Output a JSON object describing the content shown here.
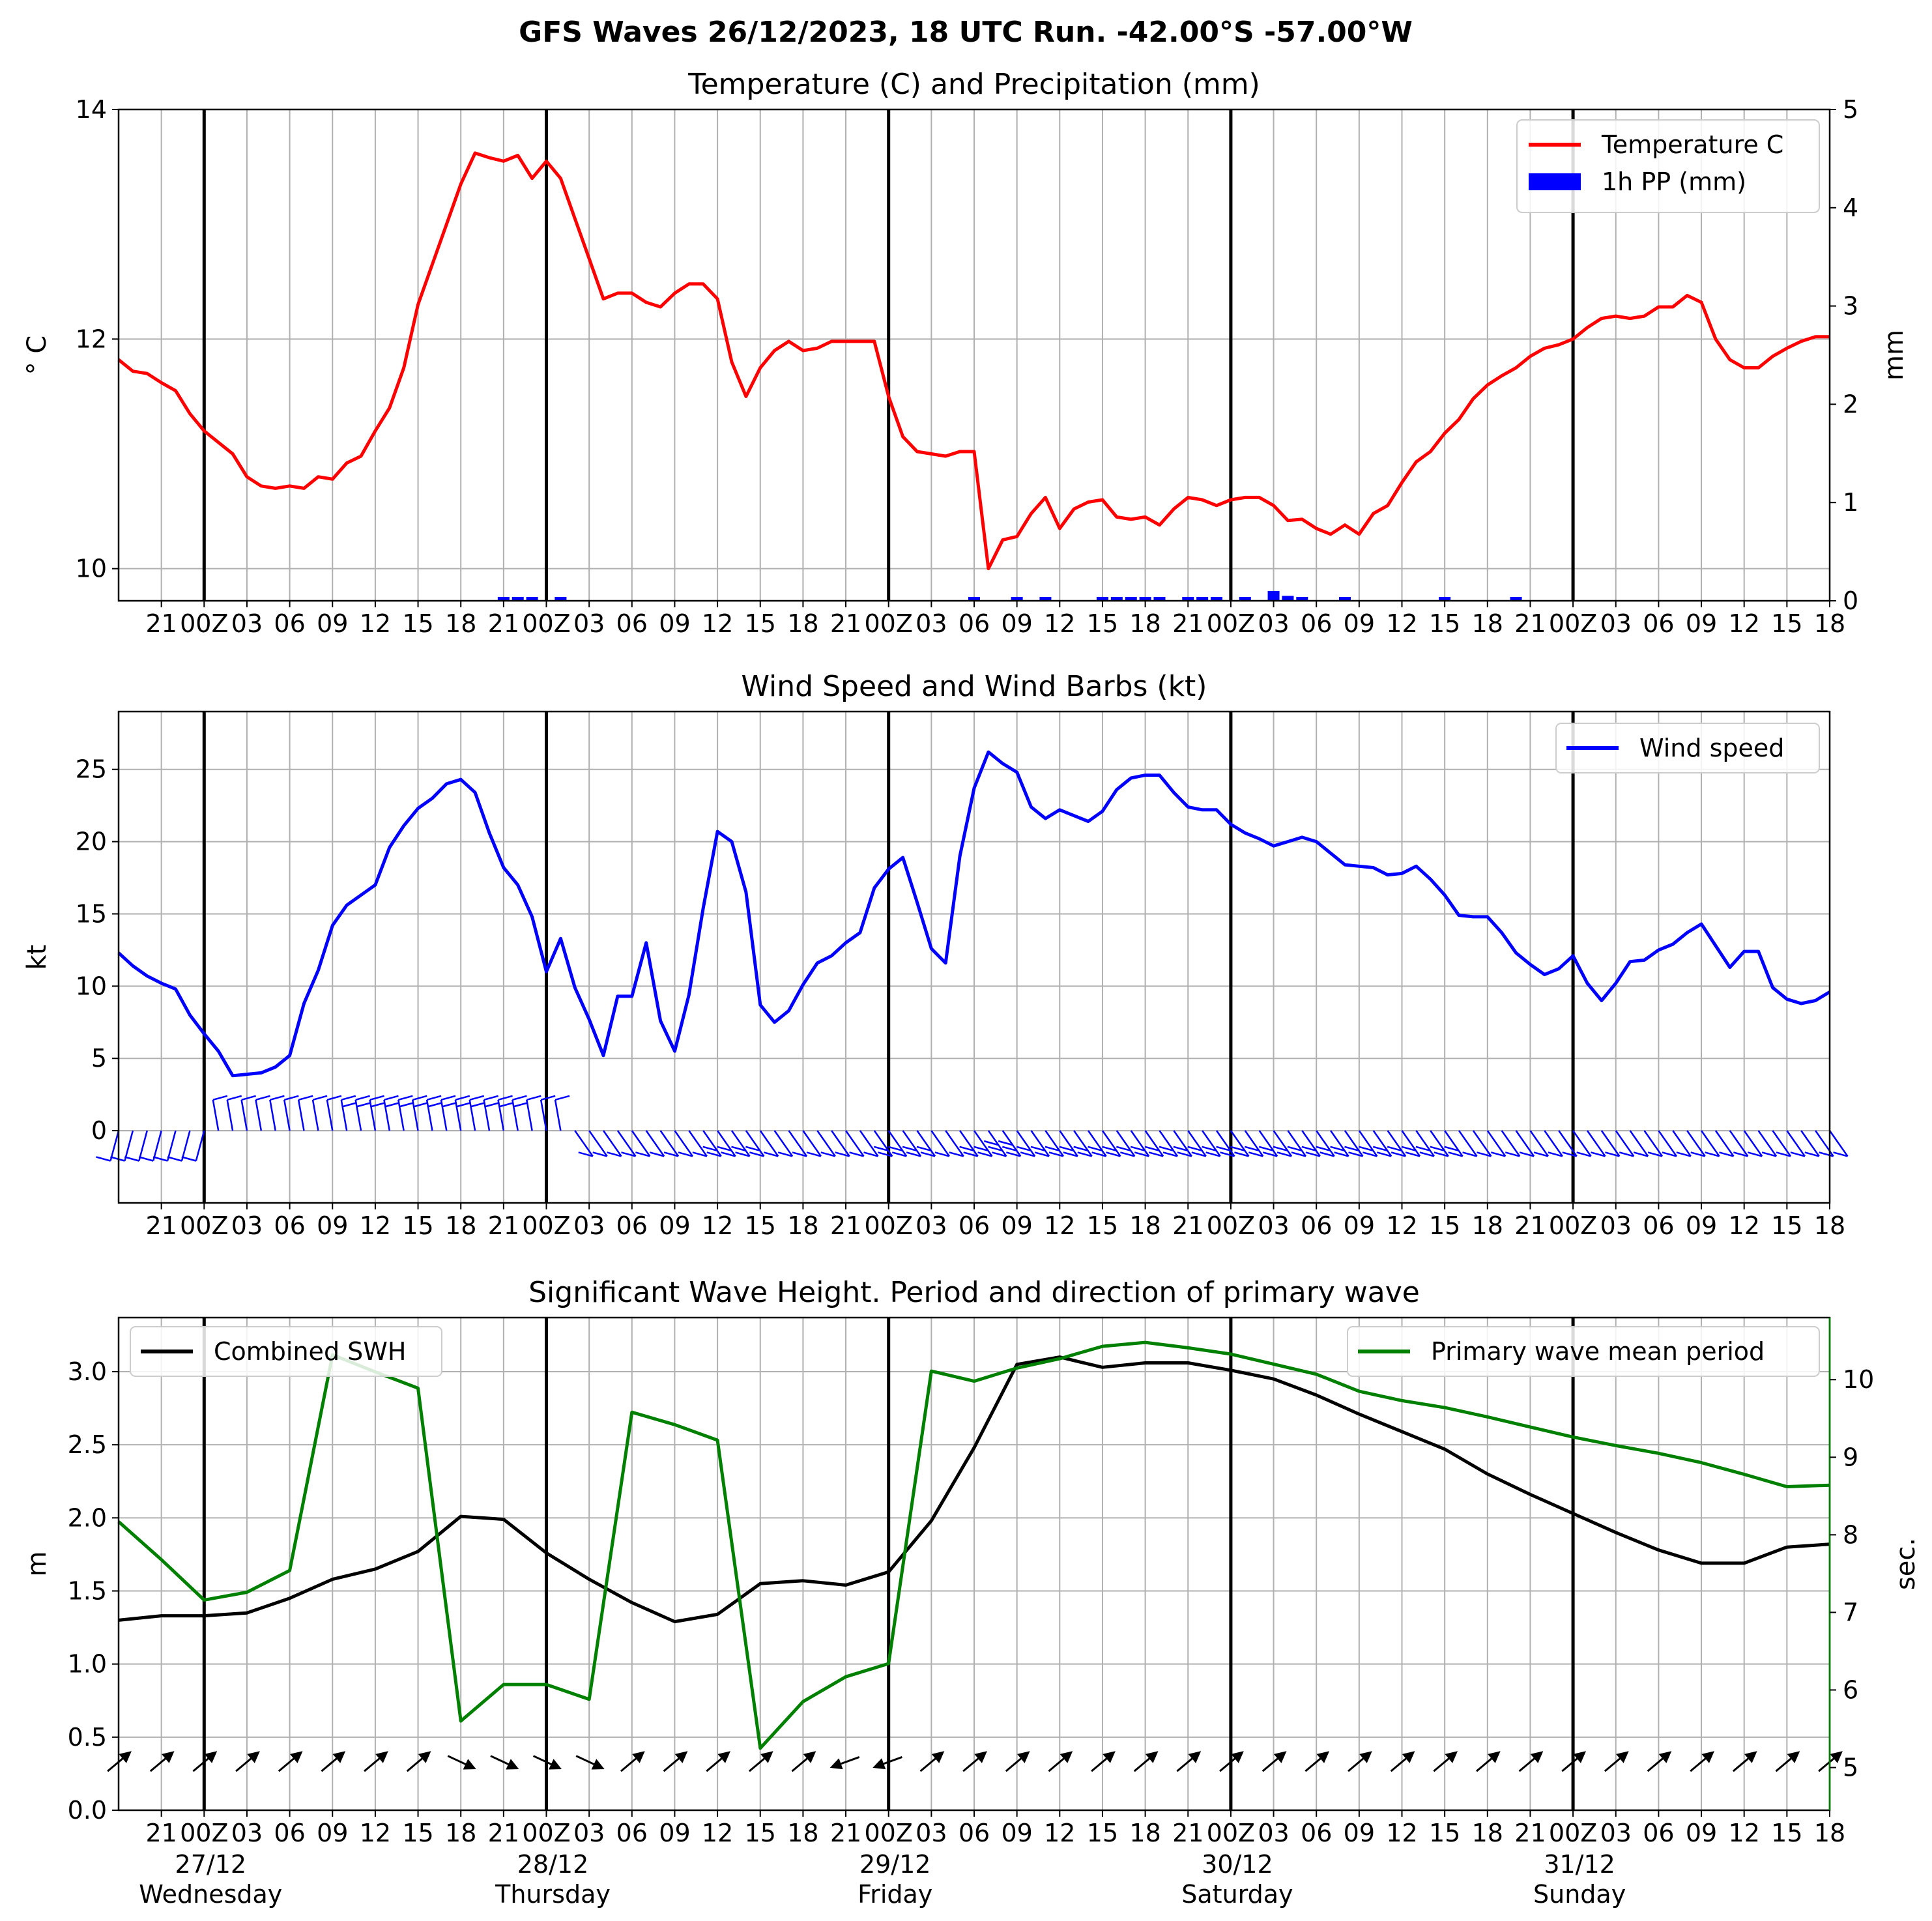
{
  "suptitle": "GFS Waves 26/12/2023, 18 UTC Run. -42.00°S -57.00°W",
  "x_tick_labels": [
    "21",
    "00Z",
    "03",
    "06",
    "09",
    "12",
    "15",
    "18",
    "21",
    "00Z",
    "03",
    "06",
    "09",
    "12",
    "15",
    "18",
    "21",
    "00Z",
    "03",
    "06",
    "09",
    "12",
    "15",
    "18",
    "21",
    "00Z",
    "03",
    "06",
    "09",
    "12",
    "15",
    "18",
    "21",
    "00Z",
    "03",
    "06",
    "09",
    "12",
    "15",
    "18"
  ],
  "day_labels": [
    {
      "date": "27/12",
      "day": "Wednesday"
    },
    {
      "date": "28/12",
      "day": "Thursday"
    },
    {
      "date": "29/12",
      "day": "Friday"
    },
    {
      "date": "30/12",
      "day": "Saturday"
    },
    {
      "date": "31/12",
      "day": "Sunday"
    }
  ],
  "colors": {
    "temperature": "#ff0000",
    "precip": "#0000ff",
    "wind": "#0000ff",
    "swh": "#000000",
    "period": "#008000",
    "grid": "#b0b0b0"
  },
  "chart_data": [
    {
      "type": "line",
      "title": "Temperature (C) and Precipitation (mm)",
      "ylabel": "° C",
      "y2label": "mm",
      "ylim": [
        9.72,
        14
      ],
      "yticks": [
        10,
        12,
        14
      ],
      "y2lim": [
        0,
        5
      ],
      "y2ticks": [
        0,
        1,
        2,
        3,
        4,
        5
      ],
      "xlim": [
        18,
        138
      ],
      "x_unit": "hours since 26/12 00Z",
      "grid": true,
      "legend": "top-right",
      "series": [
        {
          "name": "Temperature C",
          "axis": "left",
          "x": [
            18,
            19,
            20,
            21,
            22,
            23,
            24,
            25,
            26,
            27,
            28,
            29,
            30,
            31,
            32,
            33,
            34,
            35,
            36,
            37,
            38,
            39,
            40,
            41,
            42,
            43,
            44,
            45,
            46,
            47,
            48,
            49,
            50,
            51,
            52,
            53,
            54,
            55,
            56,
            57,
            58,
            59,
            60,
            61,
            62,
            63,
            64,
            65,
            66,
            67,
            68,
            69,
            70,
            71,
            72,
            73,
            74,
            75,
            76,
            77,
            78,
            79,
            80,
            81,
            82,
            83,
            84,
            85,
            86,
            87,
            88,
            89,
            90,
            91,
            92,
            93,
            94,
            95,
            96,
            97,
            98,
            99,
            100,
            101,
            102,
            103,
            104,
            105,
            106,
            107,
            108,
            109,
            110,
            111,
            112,
            113,
            114,
            115,
            116,
            117,
            118,
            119,
            120,
            121,
            122,
            123,
            124,
            125,
            126,
            127,
            128,
            129,
            130,
            131,
            132,
            133,
            134,
            135,
            136,
            137,
            138
          ],
          "values": [
            11.82,
            11.72,
            11.7,
            11.62,
            11.55,
            11.35,
            11.2,
            11.1,
            11.0,
            10.8,
            10.72,
            10.7,
            10.72,
            10.7,
            10.8,
            10.78,
            10.92,
            10.98,
            11.2,
            11.4,
            11.75,
            12.3,
            12.65,
            13.0,
            13.35,
            13.62,
            13.58,
            13.55,
            13.6,
            13.4,
            13.55,
            13.4,
            13.05,
            12.7,
            12.35,
            12.4,
            12.4,
            12.32,
            12.28,
            12.4,
            12.48,
            12.48,
            12.35,
            11.8,
            11.5,
            11.75,
            11.9,
            11.98,
            11.9,
            11.92,
            11.98,
            11.98,
            11.98,
            11.98,
            11.5,
            11.15,
            11.02,
            11.0,
            10.98,
            11.02,
            11.02,
            10.0,
            10.25,
            10.28,
            10.48,
            10.62,
            10.35,
            10.52,
            10.58,
            10.6,
            10.45,
            10.43,
            10.45,
            10.38,
            10.52,
            10.62,
            10.6,
            10.55,
            10.6,
            10.62,
            10.62,
            10.55,
            10.42,
            10.43,
            10.35,
            10.3,
            10.38,
            10.3,
            10.48,
            10.55,
            10.75,
            10.93,
            11.02,
            11.18,
            11.3,
            11.48,
            11.6,
            11.68,
            11.75,
            11.85,
            11.92,
            11.95,
            12.0,
            12.1,
            12.18,
            12.2,
            12.18,
            12.2,
            12.28,
            12.28,
            12.38,
            12.32,
            12.0,
            11.82,
            11.75,
            11.75,
            11.85,
            11.92,
            11.98,
            12.02,
            12.02
          ]
        },
        {
          "name": "1h PP (mm)",
          "axis": "right",
          "type": "bar",
          "x": [
            45,
            46,
            47,
            49,
            78,
            81,
            83,
            87,
            88,
            89,
            90,
            91,
            93,
            94,
            95,
            97,
            99,
            100,
            101,
            104,
            111,
            116
          ],
          "values": [
            0.04,
            0.04,
            0.04,
            0.04,
            0.04,
            0.04,
            0.04,
            0.04,
            0.04,
            0.04,
            0.04,
            0.04,
            0.04,
            0.04,
            0.04,
            0.04,
            0.1,
            0.05,
            0.04,
            0.04,
            0.04,
            0.04
          ]
        }
      ]
    },
    {
      "type": "line",
      "title": "Wind Speed and Wind Barbs (kt)",
      "ylabel": "kt",
      "ylim": [
        -5,
        29
      ],
      "yticks": [
        0,
        5,
        10,
        15,
        20,
        25
      ],
      "xlim": [
        18,
        138
      ],
      "grid": true,
      "legend": "top-right",
      "barb_wind_from": [
        "N (hours 18-24)",
        "W (hours 27-49)",
        "S/SW (hours 51-138)"
      ],
      "series": [
        {
          "name": "Wind speed",
          "x": [
            18,
            19,
            20,
            21,
            22,
            23,
            24,
            25,
            26,
            27,
            28,
            29,
            30,
            31,
            32,
            33,
            34,
            35,
            36,
            37,
            38,
            39,
            40,
            41,
            42,
            43,
            44,
            45,
            46,
            47,
            48,
            49,
            50,
            51,
            52,
            53,
            54,
            55,
            56,
            57,
            58,
            59,
            60,
            61,
            62,
            63,
            64,
            65,
            66,
            67,
            68,
            69,
            70,
            71,
            72,
            73,
            74,
            75,
            76,
            77,
            78,
            79,
            80,
            81,
            82,
            83,
            84,
            85,
            86,
            87,
            88,
            89,
            90,
            91,
            92,
            93,
            94,
            95,
            96,
            97,
            98,
            99,
            100,
            101,
            102,
            103,
            104,
            105,
            106,
            107,
            108,
            109,
            110,
            111,
            112,
            113,
            114,
            115,
            116,
            117,
            118,
            119,
            120,
            121,
            122,
            123,
            124,
            125,
            126,
            127,
            128,
            129,
            130,
            131,
            132,
            133,
            134,
            135,
            136,
            137,
            138
          ],
          "values": [
            12.3,
            11.4,
            10.7,
            10.2,
            9.8,
            8.0,
            6.7,
            5.5,
            3.8,
            3.9,
            4.0,
            4.4,
            5.2,
            8.8,
            11.1,
            14.2,
            15.6,
            16.3,
            17.0,
            19.6,
            21.1,
            22.3,
            23.0,
            24.0,
            24.3,
            23.4,
            20.6,
            18.2,
            17.0,
            14.8,
            11.0,
            13.3,
            9.9,
            7.7,
            5.2,
            9.3,
            9.3,
            13.0,
            7.6,
            5.5,
            9.4,
            15.4,
            20.7,
            20.0,
            16.5,
            8.7,
            7.5,
            8.3,
            10.1,
            11.6,
            12.1,
            13.0,
            13.7,
            16.8,
            18.1,
            18.9,
            15.8,
            12.6,
            11.6,
            19.0,
            23.7,
            26.2,
            25.4,
            24.8,
            22.4,
            21.6,
            22.2,
            21.8,
            21.4,
            22.1,
            23.6,
            24.4,
            24.6,
            24.6,
            23.4,
            22.4,
            22.2,
            22.2,
            21.2,
            20.6,
            20.2,
            19.7,
            20.0,
            20.3,
            20.0,
            19.2,
            18.4,
            18.3,
            18.2,
            17.7,
            17.8,
            18.3,
            17.4,
            16.3,
            14.9,
            14.8,
            14.8,
            13.7,
            12.3,
            11.5,
            10.8,
            11.2,
            12.1,
            10.2,
            9.0,
            10.2,
            11.7,
            11.8,
            12.5,
            12.9,
            13.7,
            14.3,
            12.8,
            11.3,
            12.4,
            12.4,
            9.9,
            9.1,
            8.8,
            9.0,
            9.6
          ]
        }
      ]
    },
    {
      "type": "line",
      "title": "Significant Wave Height. Period and direction of primary wave",
      "ylabel": "m",
      "y2label": "sec.",
      "ylim": [
        0,
        3.37
      ],
      "yticks": [
        0.0,
        0.5,
        1.0,
        1.5,
        2.0,
        2.5,
        3.0
      ],
      "y2lim": [
        4.45,
        10.8
      ],
      "y2ticks": [
        5,
        6,
        7,
        8,
        9,
        10
      ],
      "xlim": [
        18,
        138
      ],
      "grid": true,
      "legend": "top-left (SWH), top-right (period)",
      "wave_direction": "arrows pointing NE most of period; SE at hours 42-51; SW at 69-72",
      "series": [
        {
          "name": "Combined SWH",
          "axis": "left",
          "x": [
            18,
            21,
            24,
            27,
            30,
            33,
            36,
            39,
            42,
            45,
            48,
            51,
            54,
            57,
            60,
            63,
            66,
            69,
            72,
            75,
            78,
            81,
            84,
            87,
            90,
            93,
            96,
            99,
            102,
            105,
            108,
            111,
            114,
            117,
            120,
            123,
            126,
            129,
            132,
            135,
            138
          ],
          "values": [
            1.3,
            1.33,
            1.33,
            1.35,
            1.45,
            1.58,
            1.65,
            1.77,
            2.01,
            1.99,
            1.76,
            1.58,
            1.42,
            1.29,
            1.34,
            1.55,
            1.57,
            1.54,
            1.63,
            1.98,
            2.48,
            3.05,
            3.1,
            3.03,
            3.06,
            3.06,
            3.01,
            2.95,
            2.84,
            2.71,
            2.59,
            2.47,
            2.3,
            2.16,
            2.03,
            1.9,
            1.78,
            1.69,
            1.69,
            1.8,
            1.82
          ]
        },
        {
          "name": "Primary wave mean period",
          "axis": "right",
          "x": [
            18,
            21,
            24,
            27,
            30,
            33,
            36,
            39,
            42,
            45,
            48,
            51,
            54,
            57,
            60,
            63,
            66,
            69,
            72,
            75,
            78,
            81,
            84,
            87,
            90,
            93,
            96,
            99,
            102,
            105,
            108,
            111,
            114,
            117,
            120,
            123,
            126,
            129,
            132,
            135,
            138
          ],
          "values": [
            8.17,
            7.68,
            7.16,
            7.26,
            7.54,
            10.32,
            10.1,
            9.89,
            5.6,
            6.07,
            6.07,
            5.88,
            9.58,
            9.42,
            9.22,
            5.25,
            5.85,
            6.17,
            6.34,
            10.11,
            9.98,
            10.15,
            10.27,
            10.43,
            10.48,
            10.41,
            10.33,
            10.2,
            10.07,
            9.85,
            9.73,
            9.64,
            9.52,
            9.39,
            9.26,
            9.15,
            9.05,
            8.93,
            8.78,
            8.62,
            8.64
          ]
        }
      ]
    }
  ]
}
